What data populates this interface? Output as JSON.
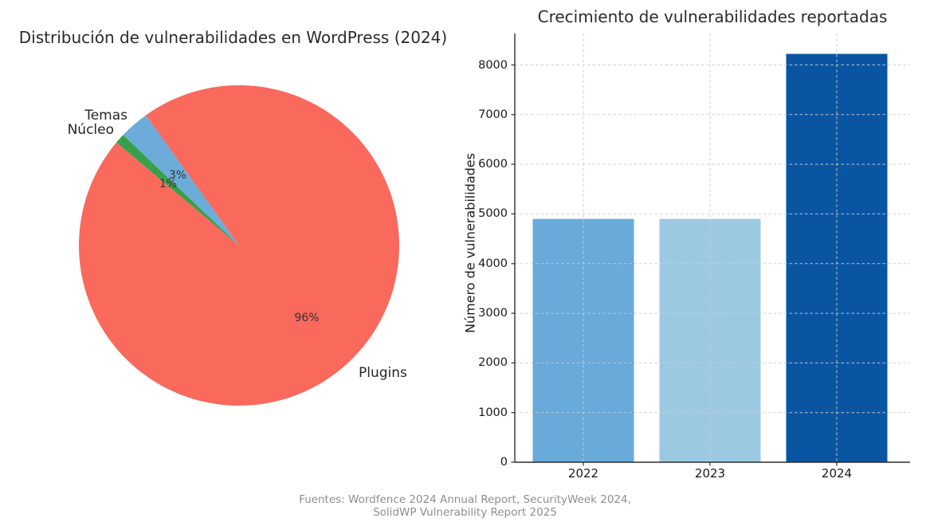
{
  "figure": {
    "caption_line1": "Fuentes: Wordfence 2024 Annual Report, SecurityWeek 2024,",
    "caption_line2": "SolidWP Vulnerability Report 2025"
  },
  "chart_data": [
    {
      "type": "pie",
      "title": "Distribución de vulnerabilidades en WordPress (2024)",
      "labels": [
        "Plugins",
        "Temas",
        "Núcleo"
      ],
      "values": [
        96,
        3,
        1
      ],
      "pct_labels": [
        "96%",
        "3%",
        "1%"
      ],
      "colors": [
        "#f9695c",
        "#6dacd9",
        "#38a04a"
      ],
      "startangle": 140,
      "counterclock": true,
      "legend_position": "none"
    },
    {
      "type": "bar",
      "title": "Crecimiento de vulnerabilidades reportadas",
      "categories": [
        "2022",
        "2023",
        "2024"
      ],
      "values": [
        4900,
        4900,
        8223
      ],
      "colors": [
        "#68aad9",
        "#9cc9e2",
        "#0a55a2"
      ],
      "xlabel": "",
      "ylabel": "Número de vulnerabilidades",
      "yticks": [
        0,
        1000,
        2000,
        3000,
        4000,
        5000,
        6000,
        7000,
        8000
      ],
      "ylim": [
        0,
        8634
      ],
      "grid": "dashed-both-axes",
      "grid_color": "#cdcdcd"
    }
  ]
}
